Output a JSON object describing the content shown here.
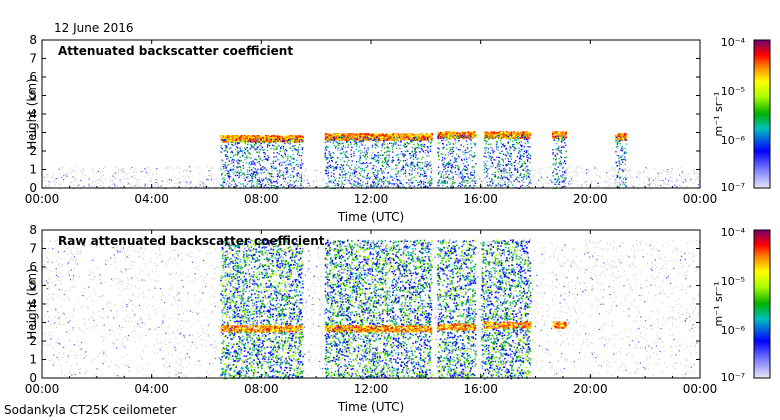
{
  "header": {
    "date": "12 June 2016",
    "footer": "Sodankyla CT25K ceilometer"
  },
  "colorbar": {
    "unit": "m⁻¹ sr⁻¹",
    "tick_labels": [
      "10⁻⁴",
      "10⁻⁵",
      "10⁻⁶",
      "10⁻⁷"
    ],
    "colors": [
      "#e0e0e0",
      "#0000ff",
      "#00b050",
      "#7fff00",
      "#ffff00",
      "#ffa500",
      "#ff0000",
      "#cc0066",
      "#6a0dad"
    ]
  },
  "chart_data": [
    {
      "type": "heatmap",
      "title": "Attenuated backscatter coefficient",
      "xlabel": "Time (UTC)",
      "ylabel": "Height (km)",
      "xlim": [
        0,
        24
      ],
      "ylim": [
        0,
        8
      ],
      "x_ticks": [
        "00:00",
        "04:00",
        "08:00",
        "12:00",
        "16:00",
        "20:00",
        "00:00"
      ],
      "y_ticks": [
        "0",
        "1",
        "2",
        "3",
        "4",
        "5",
        "6",
        "7",
        "8"
      ],
      "colorbar_range": [
        1e-07,
        0.0001
      ],
      "cloud_layers": [
        {
          "start": 6.5,
          "end": 9.5,
          "height": 2.7
        },
        {
          "start": 10.3,
          "end": 14.2,
          "height": 2.8
        },
        {
          "start": 14.4,
          "end": 15.8,
          "height": 2.9
        },
        {
          "start": 16.1,
          "end": 17.8,
          "height": 2.9
        },
        {
          "start": 18.6,
          "end": 19.1,
          "height": 2.9
        },
        {
          "start": 20.9,
          "end": 21.3,
          "height": 2.8
        }
      ]
    },
    {
      "type": "heatmap",
      "title": "Raw attenuated backscatter coefficient",
      "xlabel": "Time (UTC)",
      "ylabel": "Height (km)",
      "xlim": [
        0,
        24
      ],
      "ylim": [
        0,
        8
      ],
      "x_ticks": [
        "00:00",
        "04:00",
        "08:00",
        "12:00",
        "16:00",
        "20:00",
        "00:00"
      ],
      "y_ticks": [
        "0",
        "1",
        "2",
        "3",
        "4",
        "5",
        "6",
        "7",
        "8"
      ],
      "colorbar_range": [
        1e-07,
        0.0001
      ],
      "noisy_intervals": [
        {
          "start": 6.5,
          "end": 9.5
        },
        {
          "start": 10.3,
          "end": 14.2
        },
        {
          "start": 14.4,
          "end": 15.8
        },
        {
          "start": 16.0,
          "end": 17.8
        }
      ],
      "cloud_layers": [
        {
          "start": 6.5,
          "end": 9.5,
          "height": 2.7
        },
        {
          "start": 10.3,
          "end": 14.2,
          "height": 2.7
        },
        {
          "start": 14.4,
          "end": 15.8,
          "height": 2.8
        },
        {
          "start": 16.1,
          "end": 17.8,
          "height": 2.9
        },
        {
          "start": 18.6,
          "end": 19.1,
          "height": 2.9
        }
      ]
    }
  ]
}
